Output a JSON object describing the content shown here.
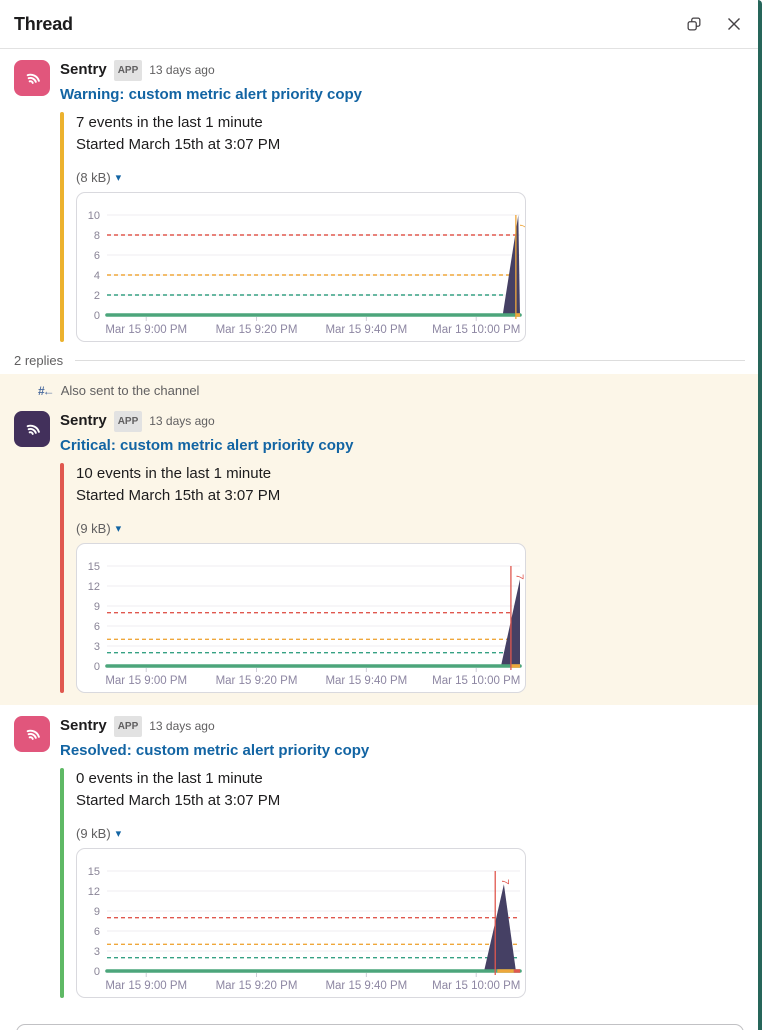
{
  "window_title": "Thread",
  "icons": {
    "caret_down": "▾",
    "hash_arrow_label": "#←"
  },
  "thread_meta": {
    "replies_label": "2 replies",
    "also_sent_label": "Also sent to the channel"
  },
  "messages": [
    {
      "sender": "Sentry",
      "badge": "APP",
      "timestamp": "13 days ago",
      "title": "Warning: custom metric alert priority copy",
      "body_line1": "7 events in the last 1 minute",
      "body_line2": "Started March 15th at 3:07 PM",
      "attachment_size": "(8 kB)",
      "accent_color": "#ecb22e",
      "avatar_color": "#e1567c"
    },
    {
      "sender": "Sentry",
      "badge": "APP",
      "timestamp": "13 days ago",
      "title": "Critical: custom metric alert priority copy",
      "body_line1": "10 events in the last 1 minute",
      "body_line2": "Started March 15th at 3:07 PM",
      "attachment_size": "(9 kB)",
      "accent_color": "#e0584f",
      "avatar_color": "#42305b"
    },
    {
      "sender": "Sentry",
      "badge": "APP",
      "timestamp": "13 days ago",
      "title": "Resolved: custom metric alert priority copy",
      "body_line1": "0 events in the last 1 minute",
      "body_line2": "Started March 15th at 3:07 PM",
      "attachment_size": "(9 kB)",
      "accent_color": "#5fb965",
      "avatar_color": "#e1567c"
    }
  ],
  "chart_data": [
    {
      "type": "area",
      "title": "Warning alert events over time",
      "ylim": [
        0,
        10
      ],
      "yticks": [
        0,
        2,
        4,
        6,
        8,
        10
      ],
      "x_ticks": [
        {
          "f": 0.095,
          "label": "Mar 15 9:00 PM"
        },
        {
          "f": 0.362,
          "label": "Mar 15 9:20 PM"
        },
        {
          "f": 0.628,
          "label": "Mar 15 9:40 PM"
        },
        {
          "f": 0.894,
          "label": "Mar 15 10:00 PM"
        }
      ],
      "thresholds": [
        {
          "value": 8,
          "color": "#e0584f"
        },
        {
          "value": 4,
          "color": "#efa73b"
        },
        {
          "value": 2,
          "color": "#36a184"
        }
      ],
      "baseline_color": "#4ca57b",
      "spike": {
        "color": "#454064",
        "points": [
          [
            0.958,
            0
          ],
          [
            0.996,
            10
          ],
          [
            1.0,
            0
          ]
        ]
      },
      "event_line": {
        "x": 0.99,
        "color": "#efa73b"
      },
      "event_flag": {
        "x": 1.0,
        "value": 9.2,
        "color": "#efa73b",
        "glyph": "7"
      },
      "bottom_segments": [
        {
          "from": 0.99,
          "to": 1.0,
          "color": "#efa73b"
        }
      ]
    },
    {
      "type": "area",
      "title": "Critical alert events over time",
      "ylim": [
        0,
        15
      ],
      "yticks": [
        0,
        3,
        6,
        9,
        12,
        15
      ],
      "x_ticks": [
        {
          "f": 0.095,
          "label": "Mar 15 9:00 PM"
        },
        {
          "f": 0.362,
          "label": "Mar 15 9:20 PM"
        },
        {
          "f": 0.628,
          "label": "Mar 15 9:40 PM"
        },
        {
          "f": 0.894,
          "label": "Mar 15 10:00 PM"
        }
      ],
      "thresholds": [
        {
          "value": 8,
          "color": "#e0584f"
        },
        {
          "value": 4,
          "color": "#efa73b"
        },
        {
          "value": 2,
          "color": "#36a184"
        }
      ],
      "baseline_color": "#4ca57b",
      "spike": {
        "color": "#454064",
        "points": [
          [
            0.954,
            0
          ],
          [
            1.0,
            13
          ],
          [
            1.0,
            0
          ]
        ]
      },
      "event_line": {
        "x": 0.978,
        "color": "#e0584f"
      },
      "event_flag": {
        "x": 0.992,
        "value": 13.8,
        "color": "#e0584f",
        "glyph": "7"
      },
      "bottom_segments": [
        {
          "from": 0.978,
          "to": 1.0,
          "color": "#efa73b"
        }
      ]
    },
    {
      "type": "area",
      "title": "Resolved alert events over time",
      "ylim": [
        0,
        15
      ],
      "yticks": [
        0,
        3,
        6,
        9,
        12,
        15
      ],
      "x_ticks": [
        {
          "f": 0.095,
          "label": "Mar 15 9:00 PM"
        },
        {
          "f": 0.362,
          "label": "Mar 15 9:20 PM"
        },
        {
          "f": 0.628,
          "label": "Mar 15 9:40 PM"
        },
        {
          "f": 0.894,
          "label": "Mar 15 10:00 PM"
        }
      ],
      "thresholds": [
        {
          "value": 8,
          "color": "#e0584f"
        },
        {
          "value": 4,
          "color": "#efa73b"
        },
        {
          "value": 2,
          "color": "#36a184"
        }
      ],
      "baseline_color": "#4ca57b",
      "spike": {
        "color": "#454064",
        "points": [
          [
            0.913,
            0
          ],
          [
            0.961,
            13
          ],
          [
            0.99,
            0
          ]
        ]
      },
      "event_line": {
        "x": 0.94,
        "color": "#e0584f"
      },
      "event_flag": {
        "x": 0.957,
        "value": 13.8,
        "color": "#e0584f",
        "glyph": "7"
      },
      "bottom_segments": [
        {
          "from": 0.945,
          "to": 0.985,
          "color": "#efa73b"
        },
        {
          "from": 0.985,
          "to": 1.0,
          "color": "#e0584f"
        }
      ]
    }
  ]
}
